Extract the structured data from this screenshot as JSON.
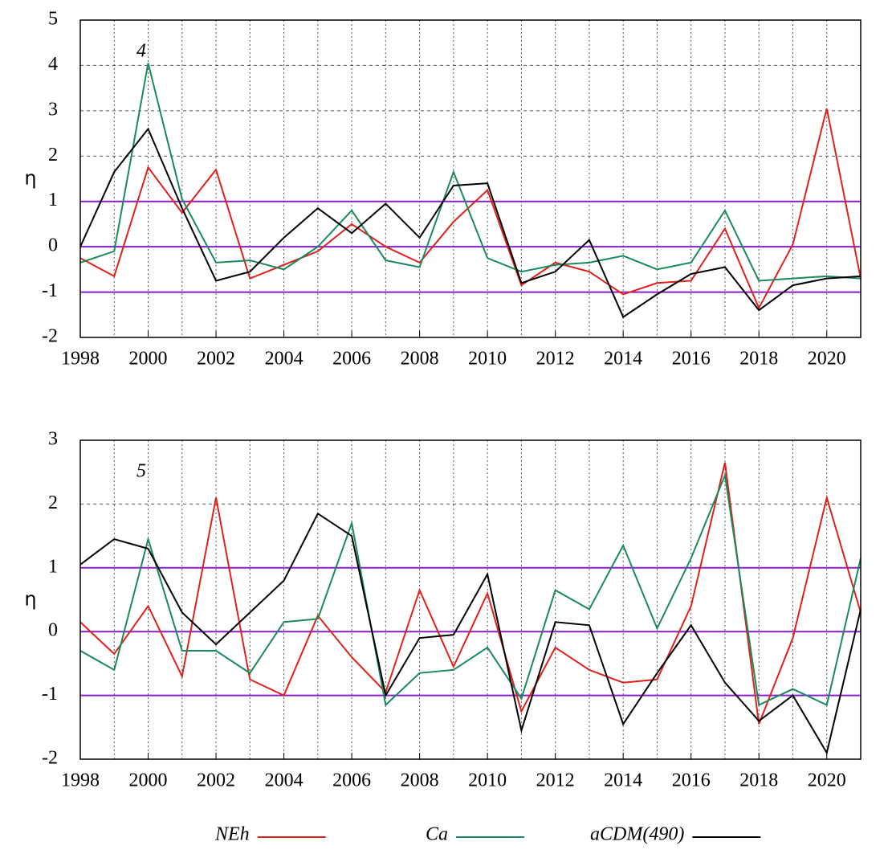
{
  "chart_data": [
    {
      "type": "line",
      "label": "4",
      "ylabel": "η",
      "x": [
        1998,
        1999,
        2000,
        2001,
        2002,
        2003,
        2004,
        2005,
        2006,
        2007,
        2008,
        2009,
        2010,
        2011,
        2012,
        2013,
        2014,
        2015,
        2016,
        2017,
        2018,
        2019,
        2020,
        2021
      ],
      "xlim": [
        1998,
        2021
      ],
      "xticks": [
        1998,
        2000,
        2002,
        2004,
        2006,
        2008,
        2010,
        2012,
        2014,
        2016,
        2018,
        2020
      ],
      "ylim": [
        -2,
        5
      ],
      "yticks": [
        -2,
        -1,
        0,
        1,
        2,
        3,
        4,
        5
      ],
      "grid": true,
      "hlines": [
        -1,
        0,
        1
      ],
      "hline_color": "#8a1fc8",
      "series": [
        {
          "name": "NEh",
          "color": "#e0201b",
          "values": [
            -0.25,
            -0.65,
            1.75,
            0.75,
            1.7,
            -0.7,
            -0.4,
            -0.1,
            0.5,
            0.0,
            -0.35,
            0.55,
            1.25,
            -0.85,
            -0.35,
            -0.55,
            -1.05,
            -0.8,
            -0.75,
            0.4,
            -1.35,
            0.05,
            3.05,
            -0.7
          ]
        },
        {
          "name": "Ca",
          "color": "#1a8a5a",
          "values": [
            -0.35,
            -0.1,
            4.05,
            1.05,
            -0.35,
            -0.3,
            -0.5,
            0.0,
            0.8,
            -0.3,
            -0.45,
            1.65,
            -0.25,
            -0.55,
            -0.4,
            -0.35,
            -0.2,
            -0.5,
            -0.35,
            0.8,
            -0.75,
            -0.7,
            -0.65,
            -0.7
          ]
        },
        {
          "name": "aCDM(490)",
          "color": "#000000",
          "values": [
            0.0,
            1.65,
            2.6,
            0.85,
            -0.75,
            -0.55,
            0.2,
            0.85,
            0.3,
            0.95,
            0.2,
            1.35,
            1.4,
            -0.8,
            -0.55,
            0.15,
            -1.55,
            -1.05,
            -0.6,
            -0.45,
            -1.4,
            -0.85,
            -0.7,
            -0.65
          ]
        }
      ]
    },
    {
      "type": "line",
      "label": "5",
      "ylabel": "η",
      "x": [
        1998,
        1999,
        2000,
        2001,
        2002,
        2003,
        2004,
        2005,
        2006,
        2007,
        2008,
        2009,
        2010,
        2011,
        2012,
        2013,
        2014,
        2015,
        2016,
        2017,
        2018,
        2019,
        2020,
        2021
      ],
      "xlim": [
        1998,
        2021
      ],
      "xticks": [
        1998,
        2000,
        2002,
        2004,
        2006,
        2008,
        2010,
        2012,
        2014,
        2016,
        2018,
        2020
      ],
      "ylim": [
        -2,
        3
      ],
      "yticks": [
        -2,
        -1,
        0,
        1,
        2,
        3
      ],
      "grid": true,
      "hlines": [
        -1,
        0,
        1
      ],
      "hline_color": "#8a1fc8",
      "series": [
        {
          "color": "#e0201b",
          "values": [
            0.15,
            -0.35,
            0.4,
            -0.7,
            2.1,
            -0.75,
            -1.0,
            0.25,
            -0.4,
            -0.95,
            0.65,
            -0.55,
            0.6,
            -1.25,
            -0.25,
            -0.6,
            -0.8,
            -0.75,
            0.4,
            2.65,
            -1.45,
            -0.1,
            2.1,
            0.3
          ]
        },
        {
          "color": "#1a8a5a",
          "values": [
            -0.3,
            -0.6,
            1.45,
            -0.3,
            -0.3,
            -0.65,
            0.15,
            0.2,
            1.7,
            -1.15,
            -0.65,
            -0.6,
            -0.25,
            -1.05,
            0.65,
            0.35,
            1.35,
            0.05,
            1.15,
            2.45,
            -1.15,
            -0.9,
            -1.15,
            1.15
          ]
        },
        {
          "color": "#000000",
          "values": [
            1.05,
            1.45,
            1.3,
            0.3,
            -0.2,
            0.3,
            0.8,
            1.85,
            1.5,
            -1.0,
            -0.1,
            -0.05,
            0.9,
            -1.55,
            0.15,
            0.1,
            -1.45,
            -0.65,
            0.1,
            -0.8,
            -1.4,
            -1.0,
            -1.9,
            0.35
          ]
        }
      ]
    }
  ]
}
